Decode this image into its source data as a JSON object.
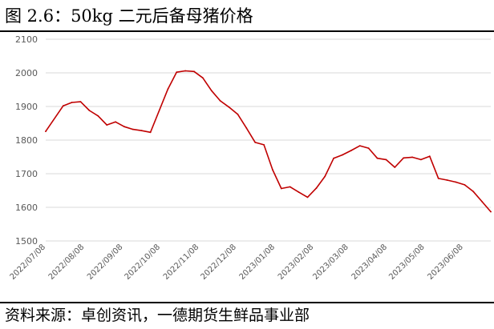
{
  "title": "图 2.6：50kg 二元后备母猪价格",
  "source": "资料来源：卓创资讯，一德期货生鲜品事业部",
  "colors": {
    "line": "#c00000",
    "grid": "#d9d9d9",
    "axis_text": "#595959"
  },
  "chart_data": {
    "type": "line",
    "title": "",
    "xlabel": "",
    "ylabel": "",
    "ylim": [
      1500,
      2100
    ],
    "yticks": [
      1500,
      1600,
      1700,
      1800,
      1900,
      2000,
      2100
    ],
    "grid": "horizontal",
    "legend": "none",
    "xlim": [
      "2022-07-08",
      "2023-06-30"
    ],
    "xtick_labels": [
      "2022/07/08",
      "2022/08/08",
      "2022/09/08",
      "2022/10/08",
      "2022/11/08",
      "2022/12/08",
      "2023/01/08",
      "2023/02/08",
      "2023/03/08",
      "2023/04/08",
      "2023/05/08",
      "2023/06/08"
    ],
    "series": [
      {
        "name": "",
        "x": [
          "2022-07-08",
          "2022-07-22",
          "2022-07-29",
          "2022-08-05",
          "2022-08-12",
          "2022-08-19",
          "2022-08-26",
          "2022-09-02",
          "2022-09-09",
          "2022-09-16",
          "2022-09-23",
          "2022-09-30",
          "2022-10-14",
          "2022-10-21",
          "2022-10-28",
          "2022-11-04",
          "2022-11-11",
          "2022-11-18",
          "2022-11-25",
          "2022-12-02",
          "2022-12-09",
          "2022-12-16",
          "2022-12-23",
          "2022-12-30",
          "2023-01-06",
          "2023-01-13",
          "2023-01-20",
          "2023-01-27",
          "2023-02-03",
          "2023-02-10",
          "2023-02-17",
          "2023-02-24",
          "2023-03-03",
          "2023-03-10",
          "2023-03-17",
          "2023-03-24",
          "2023-03-31",
          "2023-04-07",
          "2023-04-14",
          "2023-04-21",
          "2023-04-28",
          "2023-05-05",
          "2023-05-12",
          "2023-05-19",
          "2023-05-26",
          "2023-06-02",
          "2023-06-09",
          "2023-06-16",
          "2023-06-23",
          "2023-06-30"
        ],
        "y": [
          1826,
          1902,
          1912,
          1914,
          1888,
          1872,
          1845,
          1854,
          1840,
          1832,
          1828,
          1823,
          1952,
          2002,
          2006,
          2004,
          1985,
          1947,
          1917,
          1898,
          1877,
          1836,
          1793,
          1786,
          1712,
          1656,
          1661,
          1645,
          1630,
          1657,
          1692,
          1746,
          1756,
          1769,
          1783,
          1776,
          1746,
          1742,
          1719,
          1747,
          1749,
          1742,
          1752,
          1686,
          1681,
          1675,
          1667,
          1647,
          1617,
          1587
        ]
      }
    ]
  }
}
